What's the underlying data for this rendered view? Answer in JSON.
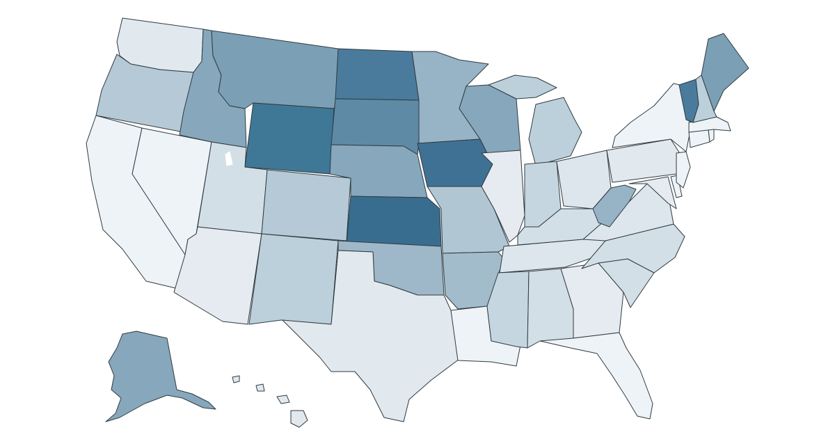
{
  "map": {
    "type": "choropleth",
    "region": "United States",
    "legend": "",
    "title": "",
    "color_scale": [
      "#f1f5f8",
      "#e1e8ee",
      "#c6d6e0",
      "#a6bfce",
      "#86a7bc",
      "#5f8aa5",
      "#3f7194"
    ],
    "states": [
      {
        "id": "WA",
        "color": "#e1e8ee"
      },
      {
        "id": "OR",
        "color": "#b5cad6"
      },
      {
        "id": "CA",
        "color": "#eef3f7"
      },
      {
        "id": "NV",
        "color": "#eef3f7"
      },
      {
        "id": "ID",
        "color": "#86a7bc"
      },
      {
        "id": "MT",
        "color": "#7b9fb5"
      },
      {
        "id": "WY",
        "color": "#3f7896"
      },
      {
        "id": "UT",
        "color": "#d3dfe7"
      },
      {
        "id": "AZ",
        "color": "#e5ebf0"
      },
      {
        "id": "CO",
        "color": "#b5cad6"
      },
      {
        "id": "NM",
        "color": "#bcd0dc"
      },
      {
        "id": "ND",
        "color": "#4a7b9c"
      },
      {
        "id": "SD",
        "color": "#5f8aa5"
      },
      {
        "id": "NE",
        "color": "#86a7bc"
      },
      {
        "id": "KS",
        "color": "#386d8f"
      },
      {
        "id": "OK",
        "color": "#9eb8c9"
      },
      {
        "id": "TX",
        "color": "#e1e8ee"
      },
      {
        "id": "MN",
        "color": "#97b3c6"
      },
      {
        "id": "IA",
        "color": "#3f7194"
      },
      {
        "id": "MO",
        "color": "#b0c6d3"
      },
      {
        "id": "AR",
        "color": "#a2bccb"
      },
      {
        "id": "LA",
        "color": "#eef3f7"
      },
      {
        "id": "WI",
        "color": "#86a7bc"
      },
      {
        "id": "IL",
        "color": "#e5ebf0"
      },
      {
        "id": "MI",
        "color": "#bcd0dc"
      },
      {
        "id": "IN",
        "color": "#c6d6e0"
      },
      {
        "id": "OH",
        "color": "#dce6ec"
      },
      {
        "id": "KY",
        "color": "#d3dfe7"
      },
      {
        "id": "TN",
        "color": "#dce6ec"
      },
      {
        "id": "MS",
        "color": "#c6d6e0"
      },
      {
        "id": "AL",
        "color": "#d3dfe7"
      },
      {
        "id": "GA",
        "color": "#e5ebf0"
      },
      {
        "id": "FL",
        "color": "#eef3f7"
      },
      {
        "id": "SC",
        "color": "#d3dfe7"
      },
      {
        "id": "NC",
        "color": "#d3dfe7"
      },
      {
        "id": "VA",
        "color": "#dce6ec"
      },
      {
        "id": "WV",
        "color": "#97b3c6"
      },
      {
        "id": "PA",
        "color": "#e1e8ee"
      },
      {
        "id": "NY",
        "color": "#eef3f7"
      },
      {
        "id": "ME",
        "color": "#7b9fb5"
      },
      {
        "id": "NH",
        "color": "#bcd0dc"
      },
      {
        "id": "VT",
        "color": "#4a7b9c"
      },
      {
        "id": "MA",
        "color": "#eef3f7"
      },
      {
        "id": "NJ",
        "color": "#eef3f7"
      },
      {
        "id": "MD",
        "color": "#e5ebf0"
      },
      {
        "id": "DE",
        "color": "#eef3f7"
      },
      {
        "id": "CT",
        "color": "#eef3f7"
      },
      {
        "id": "RI",
        "color": "#eef3f7"
      },
      {
        "id": "AK",
        "color": "#86a7bc"
      },
      {
        "id": "HI",
        "color": "#e1e8ee"
      }
    ]
  }
}
